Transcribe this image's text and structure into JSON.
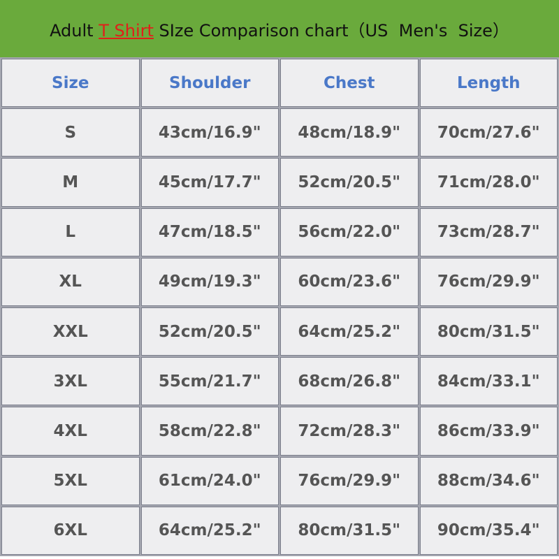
{
  "header": {
    "title_prefix": "Adult ",
    "title_highlight": "T Shirt",
    "title_suffix": " SIze Comparison chart（US  Men's  Size）"
  },
  "table": {
    "columns": [
      "Size",
      "Shoulder",
      "Chest",
      "Length"
    ],
    "rows": [
      [
        "S",
        "43cm/16.9\"",
        "48cm/18.9\"",
        "70cm/27.6\""
      ],
      [
        "M",
        "45cm/17.7\"",
        "52cm/20.5\"",
        "71cm/28.0\""
      ],
      [
        "L",
        "47cm/18.5\"",
        "56cm/22.0\"",
        "73cm/28.7\""
      ],
      [
        "XL",
        "49cm/19.3\"",
        "60cm/23.6\"",
        "76cm/29.9\""
      ],
      [
        "XXL",
        "52cm/20.5\"",
        "64cm/25.2\"",
        "80cm/31.5\""
      ],
      [
        "3XL",
        "55cm/21.7\"",
        "68cm/26.8\"",
        "84cm/33.1\""
      ],
      [
        "4XL",
        "58cm/22.8\"",
        "72cm/28.3\"",
        "86cm/33.9\""
      ],
      [
        "5XL",
        "61cm/24.0\"",
        "76cm/29.9\"",
        "88cm/34.6\""
      ],
      [
        "6XL",
        "64cm/25.2\"",
        "80cm/31.5\"",
        "90cm/35.4\""
      ]
    ]
  }
}
